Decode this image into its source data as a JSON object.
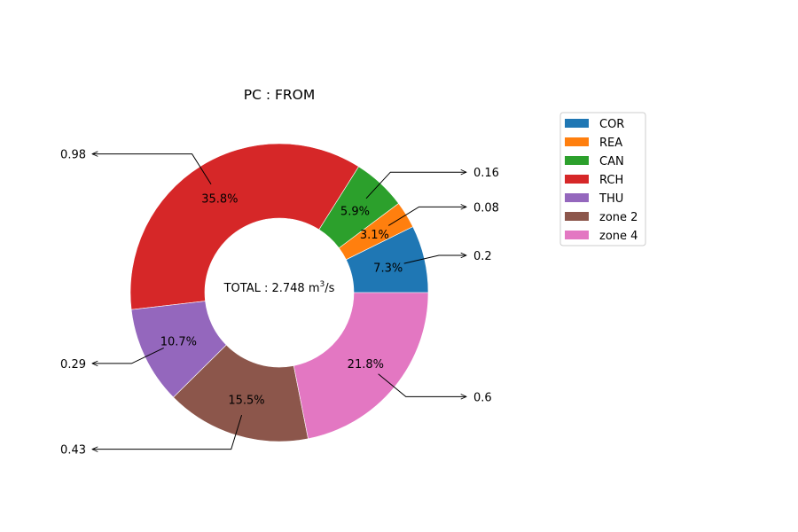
{
  "chart_data": {
    "type": "pie",
    "title": "PC : FROM",
    "center_text": {
      "prefix": "TOTAL : 2.748 m",
      "superscript": "3",
      "suffix": "/s"
    },
    "legend_position": "upper-right",
    "slices": [
      {
        "name": "COR",
        "value": 0.2,
        "percent_label": "7.3%",
        "value_label": "0.2",
        "color": "#1f77b4"
      },
      {
        "name": "REA",
        "value": 0.08,
        "percent_label": "3.1%",
        "value_label": "0.08",
        "color": "#ff7f0e"
      },
      {
        "name": "CAN",
        "value": 0.16,
        "percent_label": "5.9%",
        "value_label": "0.16",
        "color": "#2ca02c"
      },
      {
        "name": "RCH",
        "value": 0.98,
        "percent_label": "35.8%",
        "value_label": "0.98",
        "color": "#d62728"
      },
      {
        "name": "THU",
        "value": 0.29,
        "percent_label": "10.7%",
        "value_label": "0.29",
        "color": "#9467bd"
      },
      {
        "name": "zone 2",
        "value": 0.43,
        "percent_label": "15.5%",
        "value_label": "0.43",
        "color": "#8c564b"
      },
      {
        "name": "zone 4",
        "value": 0.6,
        "percent_label": "21.8%",
        "value_label": "0.6",
        "color": "#e377c2"
      }
    ],
    "percents": [
      7.3,
      3.1,
      5.9,
      35.8,
      10.7,
      15.5,
      21.8
    ]
  }
}
